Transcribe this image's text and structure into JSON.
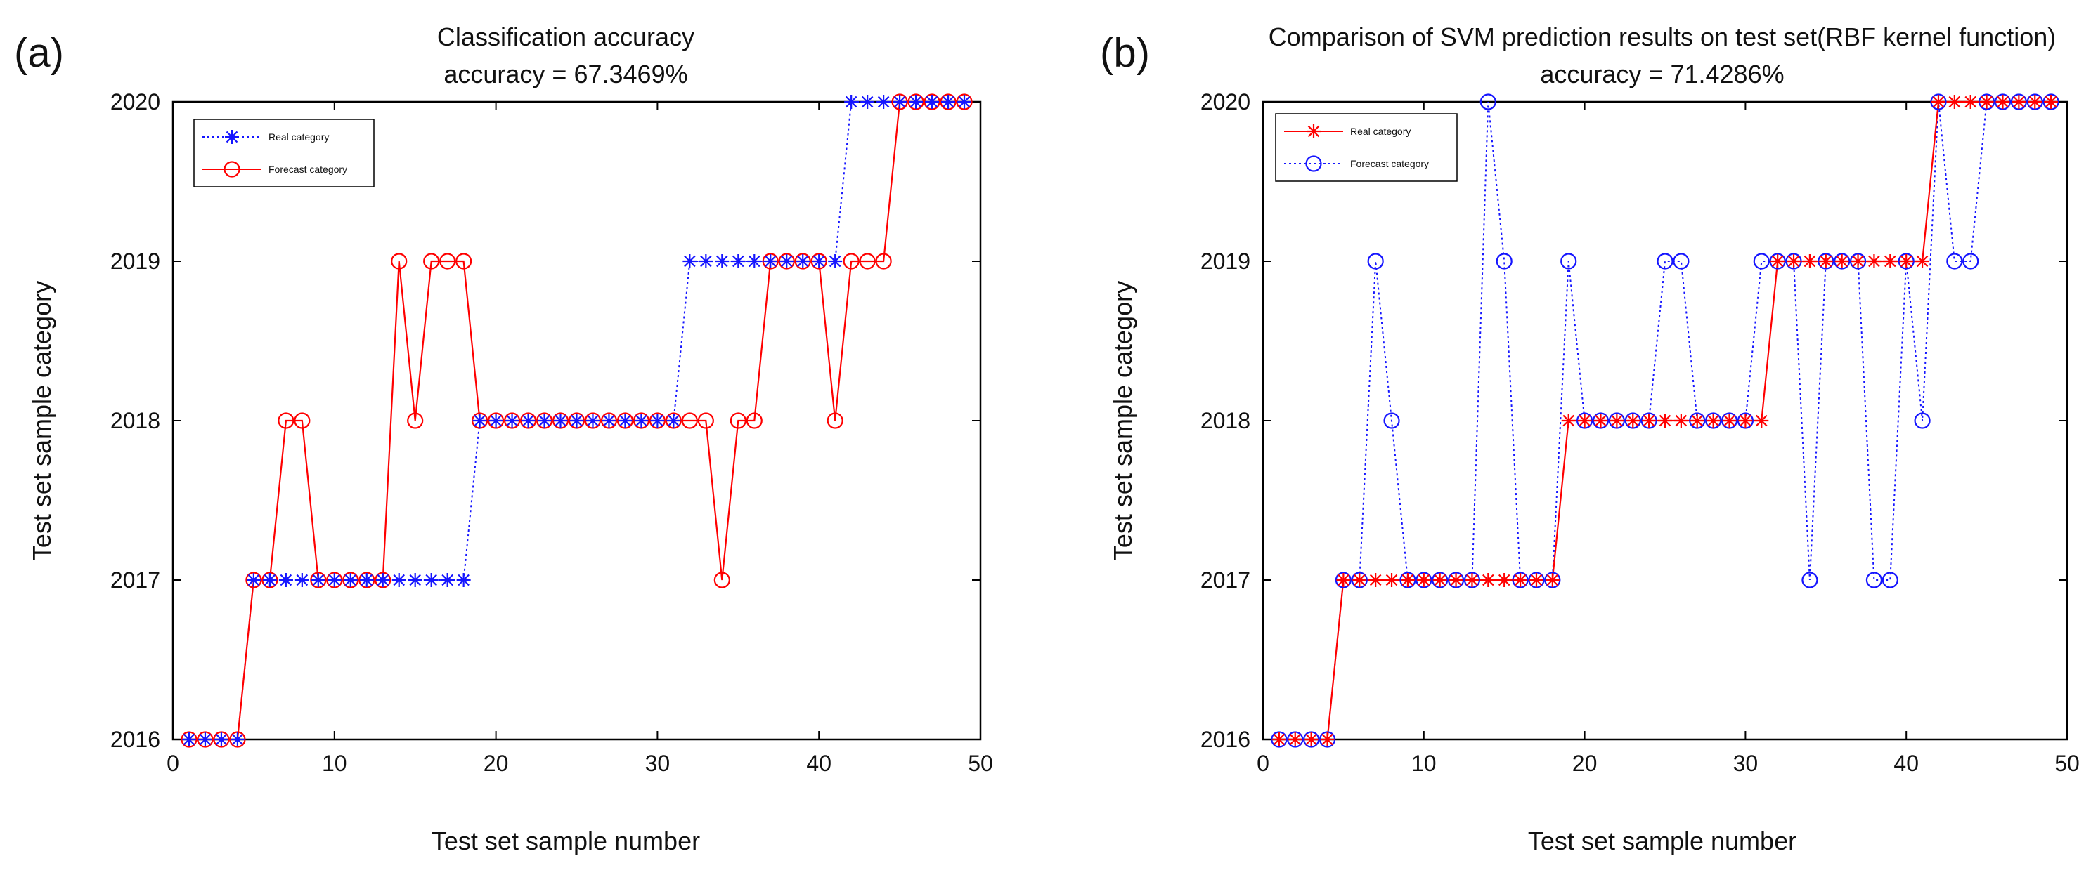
{
  "colors": {
    "red": "#ff0000",
    "blue": "#1515ff",
    "axis": "#000000",
    "background": "#ffffff"
  },
  "chart_data": [
    {
      "panel": "(a)",
      "type": "line",
      "title": "Classification accuracy",
      "subtitle": "accuracy = 67.3469%",
      "xlabel": "Test set sample number",
      "ylabel": "Test set sample category",
      "xlim": [
        0,
        50
      ],
      "ylim": [
        2016,
        2020
      ],
      "xticks": [
        0,
        10,
        20,
        30,
        40,
        50
      ],
      "yticks": [
        2016,
        2017,
        2018,
        2019,
        2020
      ],
      "grid": false,
      "legend_position": "top-left",
      "x": [
        1,
        2,
        3,
        4,
        5,
        6,
        7,
        8,
        9,
        10,
        11,
        12,
        13,
        14,
        15,
        16,
        17,
        18,
        19,
        20,
        21,
        22,
        23,
        24,
        25,
        26,
        27,
        28,
        29,
        30,
        31,
        32,
        33,
        34,
        35,
        36,
        37,
        38,
        39,
        40,
        41,
        42,
        43,
        44,
        45,
        46,
        47,
        48,
        49
      ],
      "series": [
        {
          "name": "Real category",
          "color": "#1515ff",
          "line": "dotted",
          "marker": "asterisk",
          "values": [
            2016,
            2016,
            2016,
            2016,
            2017,
            2017,
            2017,
            2017,
            2017,
            2017,
            2017,
            2017,
            2017,
            2017,
            2017,
            2017,
            2017,
            2017,
            2018,
            2018,
            2018,
            2018,
            2018,
            2018,
            2018,
            2018,
            2018,
            2018,
            2018,
            2018,
            2018,
            2019,
            2019,
            2019,
            2019,
            2019,
            2019,
            2019,
            2019,
            2019,
            2019,
            2020,
            2020,
            2020,
            2020,
            2020,
            2020,
            2020,
            2020
          ]
        },
        {
          "name": "Forecast category",
          "color": "#ff0000",
          "line": "solid",
          "marker": "circle",
          "values": [
            2016,
            2016,
            2016,
            2016,
            2017,
            2017,
            2018,
            2018,
            2017,
            2017,
            2017,
            2017,
            2017,
            2019,
            2018,
            2019,
            2019,
            2019,
            2018,
            2018,
            2018,
            2018,
            2018,
            2018,
            2018,
            2018,
            2018,
            2018,
            2018,
            2018,
            2018,
            2018,
            2018,
            2017,
            2018,
            2018,
            2019,
            2019,
            2019,
            2019,
            2018,
            2019,
            2019,
            2019,
            2020,
            2020,
            2020,
            2020,
            2020
          ]
        }
      ]
    },
    {
      "panel": "(b)",
      "type": "line",
      "title": "Comparison of SVM prediction results on test set(RBF kernel function)",
      "subtitle": "accuracy = 71.4286%",
      "xlabel": "Test set sample number",
      "ylabel": "Test set sample category",
      "xlim": [
        0,
        50
      ],
      "ylim": [
        2016,
        2020
      ],
      "xticks": [
        0,
        10,
        20,
        30,
        40,
        50
      ],
      "yticks": [
        2016,
        2017,
        2018,
        2019,
        2020
      ],
      "grid": false,
      "legend_position": "top-left",
      "x": [
        1,
        2,
        3,
        4,
        5,
        6,
        7,
        8,
        9,
        10,
        11,
        12,
        13,
        14,
        15,
        16,
        17,
        18,
        19,
        20,
        21,
        22,
        23,
        24,
        25,
        26,
        27,
        28,
        29,
        30,
        31,
        32,
        33,
        34,
        35,
        36,
        37,
        38,
        39,
        40,
        41,
        42,
        43,
        44,
        45,
        46,
        47,
        48,
        49
      ],
      "series": [
        {
          "name": "Real category",
          "color": "#ff0000",
          "line": "solid",
          "marker": "asterisk",
          "values": [
            2016,
            2016,
            2016,
            2016,
            2017,
            2017,
            2017,
            2017,
            2017,
            2017,
            2017,
            2017,
            2017,
            2017,
            2017,
            2017,
            2017,
            2017,
            2018,
            2018,
            2018,
            2018,
            2018,
            2018,
            2018,
            2018,
            2018,
            2018,
            2018,
            2018,
            2018,
            2019,
            2019,
            2019,
            2019,
            2019,
            2019,
            2019,
            2019,
            2019,
            2019,
            2020,
            2020,
            2020,
            2020,
            2020,
            2020,
            2020,
            2020
          ]
        },
        {
          "name": "Forecast category",
          "color": "#1515ff",
          "line": "dotted",
          "marker": "circle",
          "values": [
            2016,
            2016,
            2016,
            2016,
            2017,
            2017,
            2019,
            2018,
            2017,
            2017,
            2017,
            2017,
            2017,
            2020,
            2019,
            2017,
            2017,
            2017,
            2019,
            2018,
            2018,
            2018,
            2018,
            2018,
            2019,
            2019,
            2018,
            2018,
            2018,
            2018,
            2019,
            2019,
            2019,
            2017,
            2019,
            2019,
            2019,
            2017,
            2017,
            2019,
            2018,
            2020,
            2019,
            2019,
            2020,
            2020,
            2020,
            2020,
            2020
          ]
        }
      ]
    }
  ]
}
